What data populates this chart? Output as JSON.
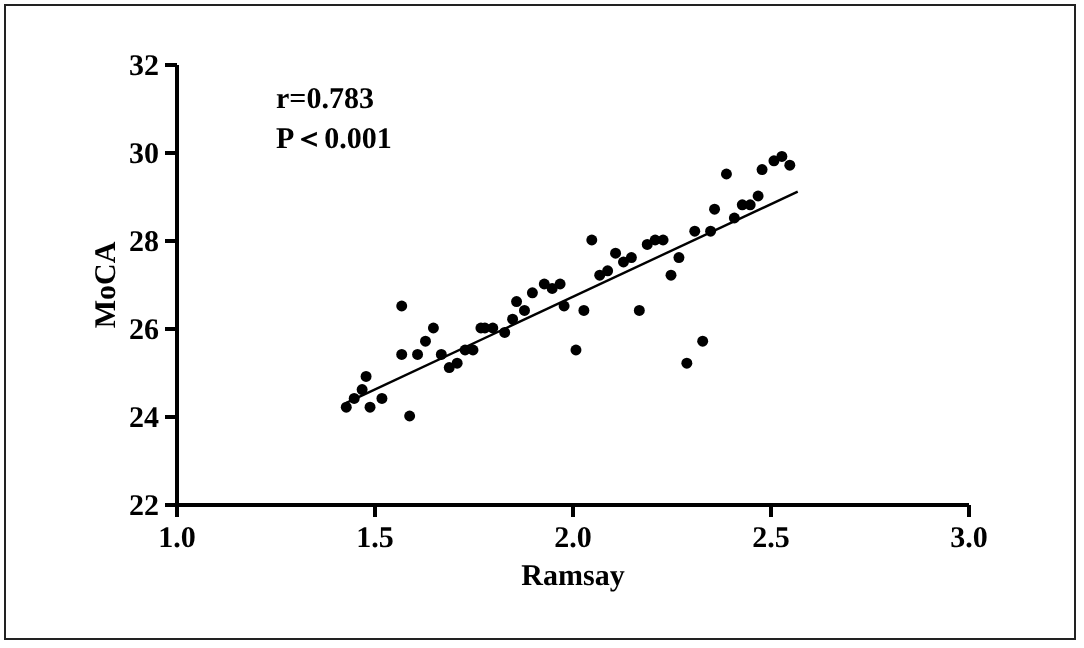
{
  "chart_data": {
    "type": "scatter",
    "xlabel": "Ramsay",
    "ylabel": "MoCA",
    "xlim": [
      1.0,
      3.0
    ],
    "xticks": [
      {
        "value": 1.0,
        "label": "1.0"
      },
      1.5,
      {
        "value": 2.0,
        "label": "2.0"
      },
      2.5,
      {
        "value": 3.0,
        "label": "3.0"
      }
    ],
    "ylim": [
      22,
      32
    ],
    "yticks": [
      22,
      24,
      26,
      28,
      30,
      32
    ],
    "grid": false,
    "marker": "circle",
    "annotations": [
      "r=0.783",
      "P＜0.001"
    ],
    "series": [
      {
        "color": "#000000",
        "x": [
          1.43,
          1.45,
          1.47,
          1.48,
          1.49,
          1.52,
          1.57,
          1.57,
          1.59,
          1.61,
          1.63,
          1.65,
          1.67,
          1.69,
          1.71,
          1.73,
          1.75,
          1.77,
          1.78,
          1.8,
          1.83,
          1.85,
          1.86,
          1.88,
          1.9,
          1.93,
          1.95,
          1.97,
          1.98,
          2.01,
          2.03,
          2.05,
          2.07,
          2.09,
          2.11,
          2.13,
          2.15,
          2.17,
          2.19,
          2.21,
          2.23,
          2.25,
          2.27,
          2.29,
          2.31,
          2.33,
          2.35,
          2.36,
          2.39,
          2.41,
          2.43,
          2.45,
          2.47,
          2.48,
          2.51,
          2.53,
          2.55
        ],
        "values": [
          24.2,
          24.4,
          24.6,
          24.9,
          24.2,
          24.4,
          25.4,
          26.5,
          24.0,
          25.4,
          25.7,
          26.0,
          25.4,
          25.1,
          25.2,
          25.5,
          25.5,
          26.0,
          26.0,
          26.0,
          25.9,
          26.2,
          26.6,
          26.4,
          26.8,
          27.0,
          26.9,
          27.0,
          26.5,
          25.5,
          26.4,
          28.0,
          27.2,
          27.3,
          27.7,
          27.5,
          27.6,
          26.4,
          27.9,
          28.0,
          28.0,
          27.2,
          27.6,
          25.2,
          28.2,
          25.7,
          28.2,
          28.7,
          29.5,
          28.5,
          28.8,
          28.8,
          29.0,
          29.6,
          29.8,
          29.9,
          29.7
        ]
      },
      {
        "type": "line",
        "marker": "none",
        "color": "#000000",
        "x": [
          1.43,
          2.57
        ],
        "values": [
          24.3,
          29.1
        ]
      }
    ]
  }
}
